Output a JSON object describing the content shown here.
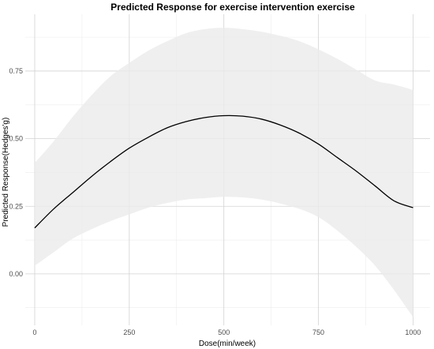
{
  "chart_data": {
    "type": "line",
    "title": "Predicted Response for exercise intervention exercise",
    "xlabel": "Dose(min/week)",
    "ylabel": "Predicted Response(Hedges'g)",
    "xlim": [
      -25,
      1045
    ],
    "ylim": [
      -0.19,
      0.96
    ],
    "x_ticks": [
      0,
      250,
      500,
      750,
      1000
    ],
    "x_tick_labels": [
      "0",
      "250",
      "500",
      "750",
      "1000"
    ],
    "y_ticks": [
      0.0,
      0.25,
      0.5,
      0.75
    ],
    "y_tick_labels": [
      "0.00",
      "0.25",
      "0.50",
      "0.75"
    ],
    "grid": true,
    "legend": "none",
    "colors": {
      "line": "#000000",
      "band": "#ebebeb",
      "grid_major": "#d3d3d3",
      "grid_minor": "#ececec"
    },
    "series": [
      {
        "x": [
          0,
          50,
          100,
          150,
          200,
          250,
          300,
          350,
          400,
          450,
          500,
          550,
          600,
          650,
          700,
          750,
          800,
          850,
          900,
          950,
          1000
        ],
        "y": [
          0.17,
          0.24,
          0.3,
          0.36,
          0.415,
          0.465,
          0.505,
          0.54,
          0.563,
          0.578,
          0.585,
          0.583,
          0.572,
          0.55,
          0.52,
          0.48,
          0.43,
          0.38,
          0.325,
          0.27,
          0.245
        ],
        "lower": [
          0.03,
          0.08,
          0.13,
          0.165,
          0.195,
          0.22,
          0.245,
          0.262,
          0.275,
          0.28,
          0.285,
          0.283,
          0.275,
          0.26,
          0.24,
          0.21,
          0.16,
          0.1,
          0.03,
          -0.06,
          -0.16
        ],
        "upper": [
          0.41,
          0.49,
          0.58,
          0.66,
          0.73,
          0.78,
          0.825,
          0.86,
          0.89,
          0.905,
          0.91,
          0.905,
          0.895,
          0.88,
          0.86,
          0.83,
          0.795,
          0.755,
          0.715,
          0.7,
          0.68
        ]
      }
    ]
  }
}
